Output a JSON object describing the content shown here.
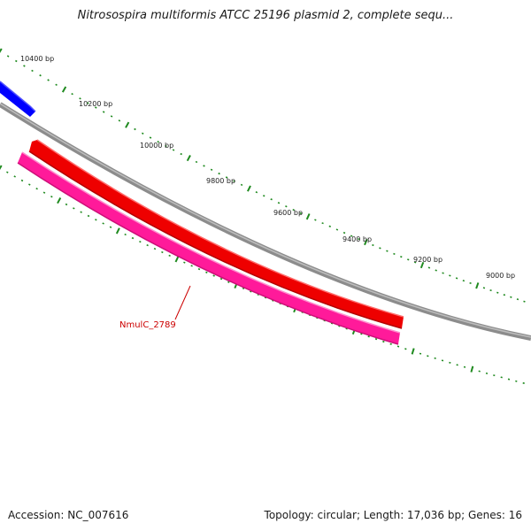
{
  "title": "Nitrosospira multiformis ATCC 25196 plasmid 2, complete sequ...",
  "footer": {
    "accession_text": "Accession: NC_007616",
    "summary_text": "Topology: circular; Length: 17,036 bp; Genes: 16"
  },
  "colors": {
    "backbone": "#8c8c8c",
    "tick": "#1f8a1f",
    "forward_gene": "#ff0000",
    "forward_gene_other": "#0000ff",
    "reverse_gene": "#ff1a9a",
    "label": "#cc0000"
  },
  "scale_labels": [
    "10400 bp",
    "10200 bp",
    "10000 bp",
    "9800 bp",
    "9600 bp",
    "9400 bp",
    "9200 bp",
    "9000 bp"
  ],
  "genes": [
    {
      "label": "",
      "strand": "forward",
      "color": "#0000ff"
    },
    {
      "label": "",
      "strand": "forward",
      "color": "#ff0000"
    },
    {
      "label": "NmulC_2789",
      "strand": "reverse",
      "color": "#ff1a9a"
    }
  ]
}
